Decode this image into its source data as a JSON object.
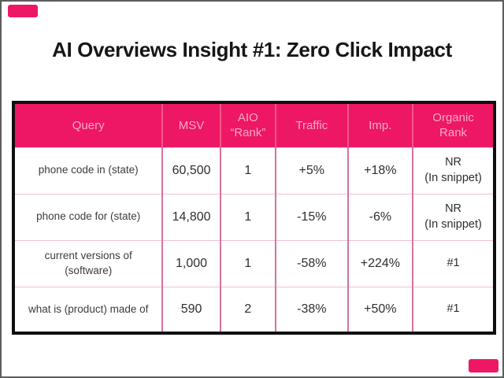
{
  "page": {
    "title": "AI Overviews Insight #1: Zero Click Impact"
  },
  "colors": {
    "accent_pink": "#EE1765",
    "header_text_pink": "#F9A9C8",
    "vertical_divider": "#D4739F",
    "horizontal_divider": "#F2C0D6",
    "table_border": "#0f0f0f",
    "title_text": "#161616"
  },
  "table": {
    "columns": [
      "Query",
      "MSV",
      "AIO\n“Rank”",
      "Traffic",
      "Imp.",
      "Organic\nRank"
    ],
    "rows": [
      {
        "query": "phone code in (state)",
        "msv": "60,500",
        "aio": "1",
        "traffic": "+5%",
        "imp": "+18%",
        "organic": "NR\n(In snippet)"
      },
      {
        "query": "phone code for (state)",
        "msv": "14,800",
        "aio": "1",
        "traffic": "-15%",
        "imp": "-6%",
        "organic": "NR\n(In snippet)"
      },
      {
        "query": "current versions of (software)",
        "msv": "1,000",
        "aio": "1",
        "traffic": "-58%",
        "imp": "+224%",
        "organic": "#1"
      },
      {
        "query": "what is (product) made of",
        "msv": "590",
        "aio": "2",
        "traffic": "-38%",
        "imp": "+50%",
        "organic": "#1"
      }
    ]
  }
}
